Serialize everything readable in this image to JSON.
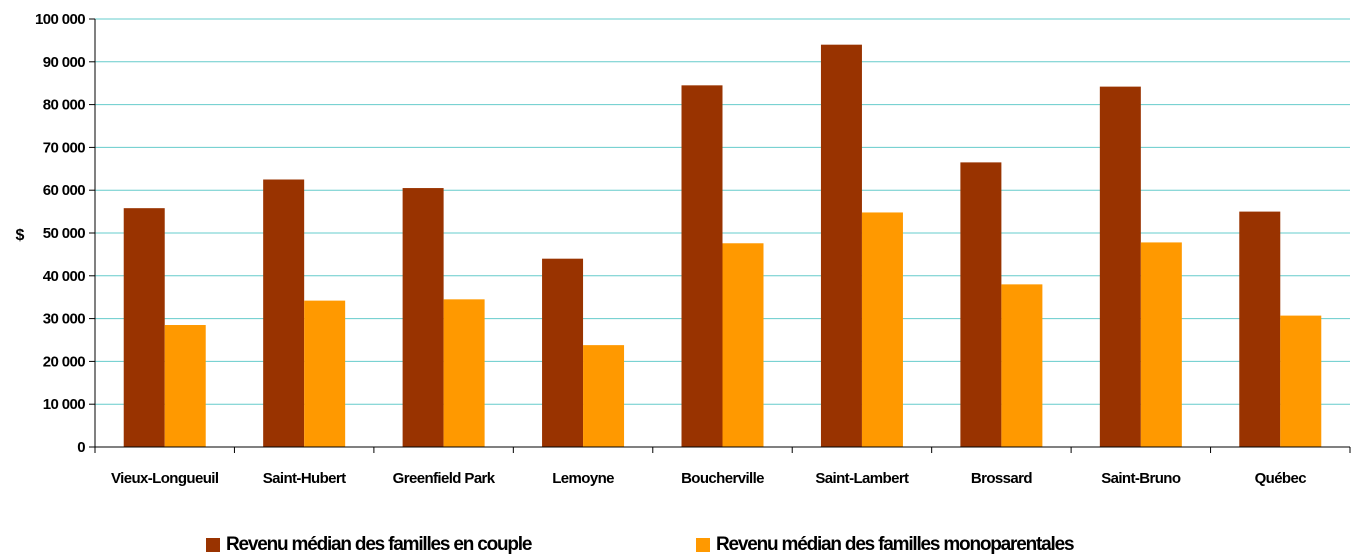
{
  "chart_data": {
    "type": "bar",
    "title": "",
    "xlabel": "",
    "ylabel": "$",
    "ylim": [
      0,
      100000
    ],
    "ytick_step": 10000,
    "yticks": [
      "0",
      "10 000",
      "20 000",
      "30 000",
      "40 000",
      "50 000",
      "60 000",
      "70 000",
      "80 000",
      "90 000",
      "100 000"
    ],
    "grid": "horizontal",
    "legend_position": "bottom",
    "categories": [
      "Vieux-Longueuil",
      "Saint-Hubert",
      "Greenfield Park",
      "Lemoyne",
      "Boucherville",
      "Saint-Lambert",
      "Brossard",
      "Saint-Bruno",
      "Québec"
    ],
    "series": [
      {
        "name": "Revenu médian des familles en couple",
        "color": "#993300",
        "values": [
          55800,
          62500,
          60500,
          44000,
          84500,
          94000,
          66500,
          84200,
          55000
        ]
      },
      {
        "name": "Revenu médian des familles monoparentales",
        "color": "#FF9900",
        "values": [
          28500,
          34200,
          34500,
          23800,
          47600,
          54800,
          38000,
          47800,
          30700
        ]
      }
    ],
    "grid_color": "#66CCCC"
  }
}
